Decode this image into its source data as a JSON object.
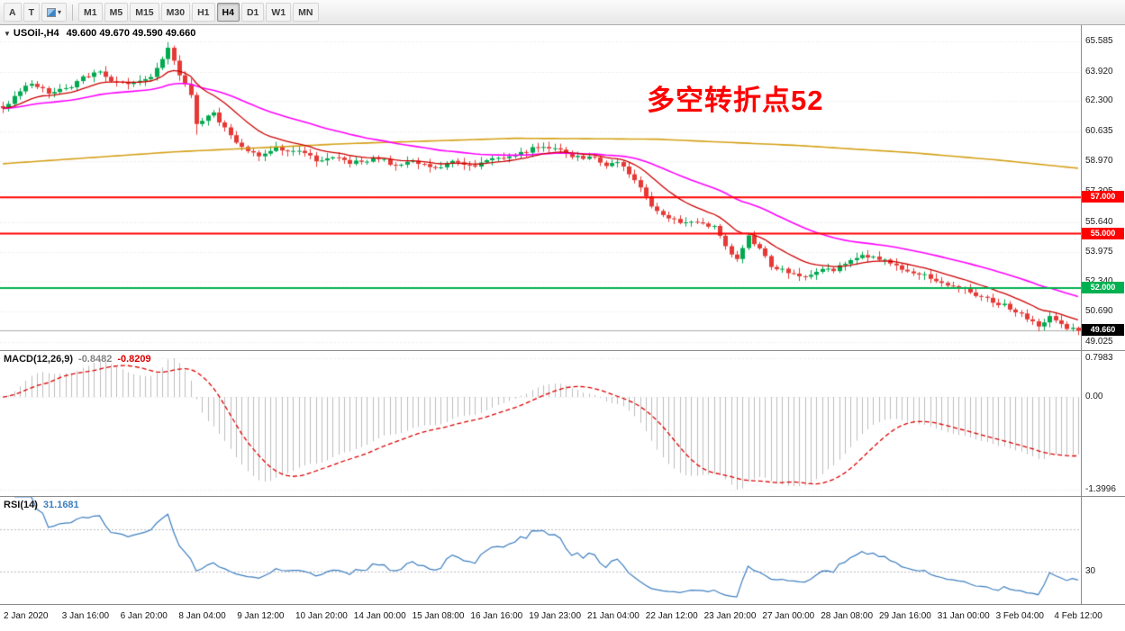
{
  "toolbar": {
    "tools": [
      {
        "name": "font-label-tool-button",
        "label": "A"
      },
      {
        "name": "text-cursor-tool-button",
        "label": "T"
      },
      {
        "name": "drawing-objects-dropdown-button",
        "label": "",
        "icon": true,
        "caret": "▾"
      }
    ],
    "timeframes": [
      "M1",
      "M5",
      "M15",
      "M30",
      "H1",
      "H4",
      "D1",
      "W1",
      "MN"
    ],
    "active_timeframe": "H4"
  },
  "chart": {
    "dropdown_arrow": "▼",
    "symbol_label": "USOil-,H4",
    "ohlc_label": "49.600 49.670 49.590 49.660",
    "annotation": {
      "text": "多空转折点52"
    },
    "bars": 190,
    "scale": {
      "max": 66.28,
      "min": 48.73
    },
    "y_ticks": [
      {
        "label": "65.585",
        "value": 65.585
      },
      {
        "label": "63.920",
        "value": 63.92
      },
      {
        "label": "62.300",
        "value": 62.3
      },
      {
        "label": "60.635",
        "value": 60.635
      },
      {
        "label": "58.970",
        "value": 58.97
      },
      {
        "label": "57.305",
        "value": 57.305
      },
      {
        "label": "55.640",
        "value": 55.64
      },
      {
        "label": "53.975",
        "value": 53.975
      },
      {
        "label": "52.340",
        "value": 52.34
      },
      {
        "label": "50.690",
        "value": 50.69
      },
      {
        "label": "49.025",
        "value": 49.025
      }
    ],
    "hlines": [
      {
        "label": "57.000",
        "value": 57.0,
        "color": "#FF0000"
      },
      {
        "label": "55.000",
        "value": 55.0,
        "color": "#FF0000"
      },
      {
        "label": "52.000",
        "value": 52.0,
        "color": "#00B050"
      }
    ],
    "current_price": {
      "label": "49.660",
      "value": 49.66
    },
    "candle_anchors": [
      [
        0,
        61.9
      ],
      [
        2,
        62.6
      ],
      [
        5,
        63.35
      ],
      [
        8,
        62.7
      ],
      [
        11,
        62.95
      ],
      [
        14,
        63.55
      ],
      [
        17,
        63.9
      ],
      [
        20,
        63.25
      ],
      [
        23,
        63.4
      ],
      [
        26,
        63.6
      ],
      [
        29,
        65.2
      ],
      [
        31,
        63.7
      ],
      [
        33,
        62.6
      ],
      [
        34,
        61.0
      ],
      [
        37,
        61.6
      ],
      [
        40,
        60.4
      ],
      [
        42,
        59.8
      ],
      [
        45,
        59.35
      ],
      [
        48,
        59.7
      ],
      [
        52,
        59.5
      ],
      [
        55,
        59.05
      ],
      [
        58,
        59.25
      ],
      [
        61,
        58.95
      ],
      [
        63,
        58.9
      ],
      [
        66,
        59.15
      ],
      [
        69,
        58.75
      ],
      [
        72,
        58.95
      ],
      [
        76,
        58.6
      ],
      [
        79,
        58.9
      ],
      [
        83,
        58.8
      ],
      [
        86,
        59.1
      ],
      [
        89,
        59.3
      ],
      [
        92,
        59.55
      ],
      [
        94,
        59.8
      ],
      [
        97,
        59.65
      ],
      [
        100,
        59.3
      ],
      [
        104,
        59.1
      ],
      [
        106,
        58.75
      ],
      [
        108,
        58.9
      ],
      [
        110,
        58.35
      ],
      [
        112,
        57.45
      ],
      [
        114,
        56.45
      ],
      [
        117,
        55.85
      ],
      [
        120,
        55.6
      ],
      [
        123,
        55.5
      ],
      [
        125,
        55.45
      ],
      [
        127,
        54.35
      ],
      [
        129,
        53.5
      ],
      [
        131,
        54.85
      ],
      [
        134,
        53.7
      ],
      [
        135,
        53.25
      ],
      [
        138,
        52.85
      ],
      [
        141,
        52.6
      ],
      [
        144,
        53.0
      ],
      [
        146,
        52.95
      ],
      [
        148,
        53.4
      ],
      [
        151,
        53.85
      ],
      [
        154,
        53.6
      ],
      [
        156,
        53.35
      ],
      [
        159,
        53.0
      ],
      [
        162,
        52.7
      ],
      [
        165,
        52.35
      ],
      [
        166,
        52.2
      ],
      [
        169,
        51.9
      ],
      [
        172,
        51.5
      ],
      [
        175,
        51.15
      ],
      [
        177,
        50.9
      ],
      [
        180,
        50.35
      ],
      [
        182,
        49.95
      ],
      [
        184,
        50.4
      ],
      [
        186,
        49.95
      ],
      [
        188,
        49.75
      ],
      [
        189,
        49.66
      ]
    ],
    "wick_overrides": {
      "29": {
        "high": 65.55
      },
      "34": {
        "low": 60.45
      }
    },
    "ma": {
      "fast_period": 13,
      "mid_period": 40,
      "slow_anchors": [
        [
          0,
          58.85
        ],
        [
          30,
          59.5
        ],
        [
          60,
          59.95
        ],
        [
          90,
          60.25
        ],
        [
          115,
          60.2
        ],
        [
          140,
          59.85
        ],
        [
          160,
          59.45
        ],
        [
          175,
          59.05
        ],
        [
          189,
          58.6
        ]
      ]
    }
  },
  "macd": {
    "name": "MACD(12,26,9)",
    "value_main": "-0.8482",
    "value_signal": "-0.8209",
    "fast": 12,
    "slow": 26,
    "signal_period": 9,
    "y_ticks": [
      {
        "label": "0.7983",
        "value": 0.7983
      },
      {
        "label": "0.00",
        "value": 0
      },
      {
        "label": "-1.3996",
        "value": -1.3996
      }
    ]
  },
  "rsi": {
    "name": "RSI(14)",
    "value": "31.1681",
    "period": 14,
    "levels": [
      70,
      30
    ],
    "y_ticks": [
      {
        "label": "30",
        "value": 30
      }
    ]
  },
  "time_axis": {
    "labels": [
      "2 Jan 2020",
      "3 Jan 16:00",
      "6 Jan 20:00",
      "8 Jan 04:00",
      "9 Jan 12:00",
      "10 Jan 20:00",
      "14 Jan 00:00",
      "15 Jan 08:00",
      "16 Jan 16:00",
      "19 Jan 23:00",
      "21 Jan 04:00",
      "22 Jan 12:00",
      "23 Jan 20:00",
      "27 Jan 00:00",
      "28 Jan 08:00",
      "29 Jan 16:00",
      "31 Jan 00:00",
      "3 Feb 04:00",
      "4 Feb 12:00"
    ]
  },
  "colors": {
    "bull": "#00A94F",
    "bear": "#E53935",
    "ma_fast": "#CC0000",
    "ma_mid": "#FF00FF",
    "ma_slow": "#D4A017",
    "macd_hist": "#BDBDBD",
    "macd_signal": "#DD0000",
    "macd_value_text": "#848484",
    "rsi_line": "#3C7EBF",
    "grid": "#E4E4E4",
    "level_line": "#B8B8C4",
    "current_price_line": "#ABABAB",
    "current_price_bg": "#000000",
    "annotation": "#FF0000"
  }
}
